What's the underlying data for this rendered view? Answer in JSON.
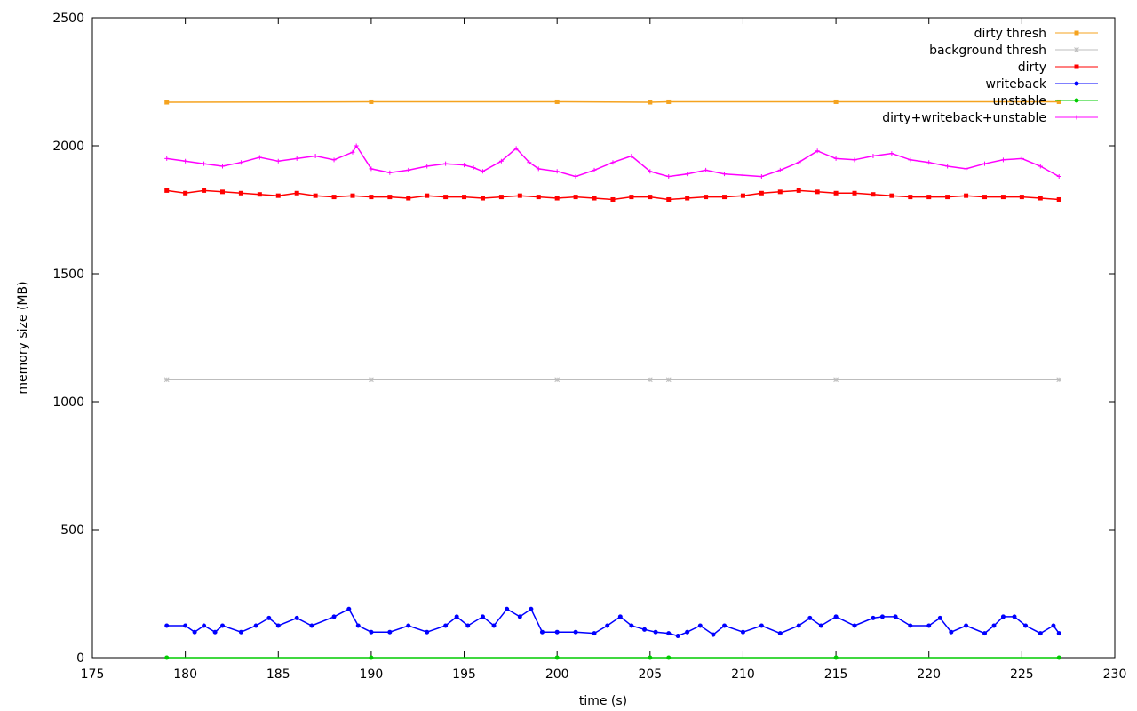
{
  "chart_data": {
    "type": "line",
    "xlabel": "time (s)",
    "ylabel": "memory size (MB)",
    "xlim": [
      175,
      230
    ],
    "ylim": [
      0,
      2500
    ],
    "xticks": [
      175,
      180,
      185,
      190,
      195,
      200,
      205,
      210,
      215,
      220,
      225,
      230
    ],
    "yticks": [
      0,
      500,
      1000,
      1500,
      2000,
      2500
    ],
    "grid": false,
    "legend_position": "top-right",
    "series": [
      {
        "name": "dirty thresh",
        "color": "#f5a31f",
        "marker": "square",
        "x": [
          179,
          190,
          200,
          205,
          206,
          215,
          227
        ],
        "y": [
          2170,
          2172,
          2172,
          2170,
          2172,
          2172,
          2172
        ]
      },
      {
        "name": "background thresh",
        "color": "#bdbdbd",
        "marker": "star",
        "x": [
          179,
          190,
          200,
          205,
          206,
          215,
          227
        ],
        "y": [
          1086,
          1086,
          1086,
          1086,
          1086,
          1086,
          1086
        ]
      },
      {
        "name": "dirty",
        "color": "#ff0000",
        "marker": "square",
        "x": [
          179,
          180,
          181,
          182,
          183,
          184,
          185,
          186,
          187,
          188,
          189,
          190,
          191,
          192,
          193,
          194,
          195,
          196,
          197,
          198,
          199,
          200,
          201,
          202,
          203,
          204,
          205,
          206,
          207,
          208,
          209,
          210,
          211,
          212,
          213,
          214,
          215,
          216,
          217,
          218,
          219,
          220,
          221,
          222,
          223,
          224,
          225,
          226,
          227
        ],
        "y": [
          1825,
          1815,
          1825,
          1820,
          1815,
          1810,
          1805,
          1815,
          1805,
          1800,
          1805,
          1800,
          1800,
          1795,
          1805,
          1800,
          1800,
          1795,
          1800,
          1805,
          1800,
          1795,
          1800,
          1795,
          1790,
          1800,
          1800,
          1790,
          1795,
          1800,
          1800,
          1805,
          1815,
          1820,
          1825,
          1820,
          1815,
          1815,
          1810,
          1805,
          1800,
          1800,
          1800,
          1805,
          1800,
          1800,
          1800,
          1795,
          1790
        ]
      },
      {
        "name": "writeback",
        "color": "#0000ff",
        "marker": "circle",
        "x": [
          179,
          180,
          180.5,
          181,
          181.6,
          182,
          183,
          183.8,
          184.5,
          185,
          186,
          186.8,
          188,
          188.8,
          189.3,
          190,
          191,
          192,
          193,
          194,
          194.6,
          195.2,
          196,
          196.6,
          197.3,
          198,
          198.6,
          199.2,
          200,
          201,
          202,
          202.7,
          203.4,
          204,
          204.7,
          205.3,
          206,
          206.5,
          207,
          207.7,
          208.4,
          209,
          210,
          211,
          212,
          213,
          213.6,
          214.2,
          215,
          216,
          217,
          217.5,
          218.2,
          219,
          220,
          220.6,
          221.2,
          222,
          223,
          223.5,
          224,
          224.6,
          225.2,
          226,
          226.7,
          227
        ],
        "y": [
          125,
          125,
          100,
          125,
          100,
          125,
          100,
          125,
          155,
          125,
          155,
          125,
          160,
          190,
          125,
          100,
          100,
          125,
          100,
          125,
          160,
          125,
          160,
          125,
          190,
          160,
          190,
          100,
          100,
          100,
          95,
          125,
          160,
          125,
          110,
          100,
          95,
          85,
          100,
          125,
          90,
          125,
          100,
          125,
          95,
          125,
          155,
          125,
          160,
          125,
          155,
          160,
          160,
          125,
          125,
          155,
          100,
          125,
          95,
          125,
          160,
          160,
          125,
          95,
          125,
          95
        ]
      },
      {
        "name": "unstable",
        "color": "#00cc00",
        "marker": "circle",
        "x": [
          179,
          190,
          200,
          205,
          206,
          215,
          227
        ],
        "y": [
          0,
          0,
          0,
          0,
          0,
          0,
          0
        ]
      },
      {
        "name": "dirty+writeback+unstable",
        "color": "#ff00ff",
        "marker": "plus",
        "x": [
          179,
          180,
          181,
          182,
          183,
          184,
          185,
          186,
          187,
          188,
          189,
          189.2,
          190,
          191,
          192,
          193,
          194,
          195,
          195.5,
          196,
          197,
          197.8,
          198.5,
          199,
          200,
          201,
          202,
          203,
          204,
          205,
          206,
          207,
          208,
          209,
          210,
          211,
          212,
          213,
          214,
          215,
          216,
          217,
          218,
          219,
          220,
          221,
          222,
          223,
          224,
          225,
          226,
          227
        ],
        "y": [
          1950,
          1940,
          1930,
          1920,
          1935,
          1955,
          1940,
          1950,
          1960,
          1945,
          1975,
          2000,
          1910,
          1895,
          1905,
          1920,
          1930,
          1925,
          1915,
          1900,
          1940,
          1990,
          1935,
          1910,
          1900,
          1880,
          1905,
          1935,
          1960,
          1900,
          1880,
          1890,
          1905,
          1890,
          1885,
          1880,
          1905,
          1935,
          1980,
          1950,
          1945,
          1960,
          1970,
          1945,
          1935,
          1920,
          1910,
          1930,
          1945,
          1950,
          1920,
          1880
        ]
      }
    ]
  }
}
